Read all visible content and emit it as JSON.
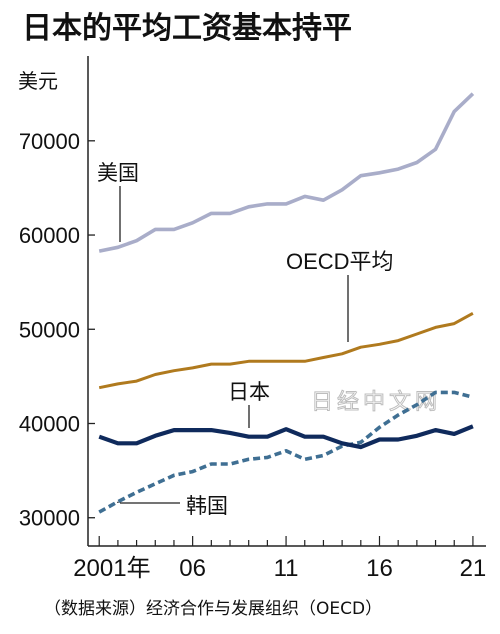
{
  "chart_data": {
    "type": "line",
    "title": "日本的平均工资基本持平",
    "ylabel": "美元",
    "source": "（数据来源）经济合作与发展组织（OECD）",
    "watermark": "日经中文网",
    "ylim": [
      27000,
      79000
    ],
    "xlim": [
      2000.4,
      2021.7
    ],
    "yticks": [
      30000,
      40000,
      50000,
      60000,
      70000
    ],
    "xticks": [
      {
        "value": 2001,
        "label": "2001年"
      },
      {
        "value": 2006,
        "label": "06"
      },
      {
        "value": 2011,
        "label": "11"
      },
      {
        "value": 2016,
        "label": "16"
      },
      {
        "value": 2021,
        "label": "21"
      }
    ],
    "x": [
      2001,
      2002,
      2003,
      2004,
      2005,
      2006,
      2007,
      2008,
      2009,
      2010,
      2011,
      2012,
      2013,
      2014,
      2015,
      2016,
      2017,
      2018,
      2019,
      2020,
      2021
    ],
    "series": [
      {
        "name": "美国",
        "color": "#a9adc9",
        "style": "solid",
        "values": [
          58300,
          58700,
          59400,
          60600,
          60600,
          61300,
          62300,
          62300,
          63000,
          63300,
          63300,
          64100,
          63700,
          64800,
          66300,
          66600,
          67000,
          67700,
          69100,
          73100,
          75000
        ]
      },
      {
        "name": "OECD平均",
        "color": "#b07a1e",
        "style": "solid",
        "values": [
          43800,
          44200,
          44500,
          45200,
          45600,
          45900,
          46300,
          46300,
          46600,
          46600,
          46600,
          46600,
          47000,
          47400,
          48100,
          48400,
          48800,
          49500,
          50200,
          50600,
          51700
        ]
      },
      {
        "name": "日本",
        "color": "#0f2a5c",
        "style": "solid",
        "values": [
          38600,
          37900,
          37900,
          38700,
          39300,
          39300,
          39300,
          39000,
          38600,
          38600,
          39400,
          38600,
          38600,
          37900,
          37500,
          38300,
          38300,
          38700,
          39300,
          38900,
          39700
        ]
      },
      {
        "name": "韩国",
        "color": "#3f6f93",
        "style": "dashed",
        "values": [
          30600,
          31700,
          32700,
          33600,
          34500,
          34900,
          35700,
          35700,
          36200,
          36400,
          37100,
          36200,
          36600,
          37600,
          38000,
          39600,
          40900,
          42000,
          43300,
          43300,
          42800
        ]
      }
    ]
  }
}
